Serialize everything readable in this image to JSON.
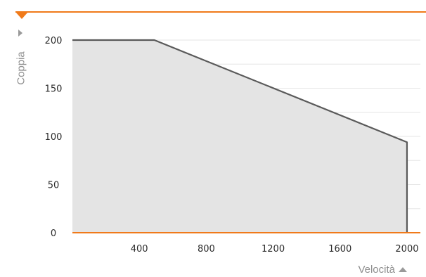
{
  "chart_data": {
    "type": "area",
    "title": "",
    "xlabel": "Velocità",
    "ylabel": "Coppia",
    "xlim": [
      0,
      2080
    ],
    "ylim": [
      0,
      200
    ],
    "x_ticks": [
      400,
      800,
      1200,
      1600,
      2000
    ],
    "y_ticks": [
      0,
      50,
      100,
      150,
      200
    ],
    "grid": true,
    "series": [
      {
        "x": [
          0,
          490,
          2000,
          2000
        ],
        "y": [
          200,
          200,
          94,
          0
        ]
      }
    ]
  },
  "colors": {
    "accent": "#f07a1a",
    "area_fill": "#e4e4e4",
    "line": "#5a5a5a",
    "grid": "#e6e6e6",
    "axis_text": "#8f8f8f"
  },
  "icons": {
    "top_marker": "triangle-down-icon",
    "ylabel_marker": "triangle-right-icon",
    "xlabel_marker": "triangle-up-icon"
  }
}
